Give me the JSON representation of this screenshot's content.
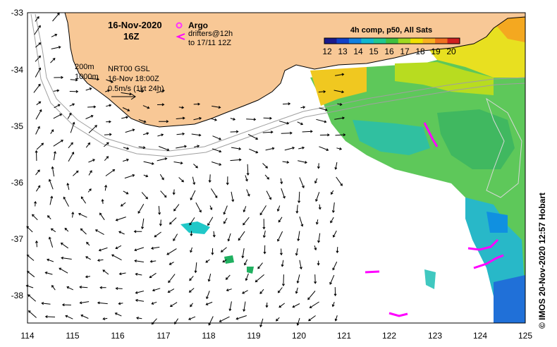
{
  "title": {
    "date": "16-Nov-2020",
    "hour": "16Z"
  },
  "legend": {
    "argo_label": "Argo",
    "drifters_line1": "drifters@12h",
    "drifters_line2": "to 17/11 12Z",
    "argo_color": "#ff33ff",
    "drifter_color": "#ff00ff"
  },
  "contours": {
    "label_200m": "200m",
    "label_1000m": "1000m"
  },
  "currents": {
    "product": "NRT00 GSL",
    "valid_time": "16-Nov 18:00Z",
    "scale_label": "0.5m/s (1kt 24h)"
  },
  "colorbar": {
    "title": "4h comp, p50, All Sats",
    "ticks": [
      "12",
      "13",
      "14",
      "15",
      "16",
      "17",
      "18",
      "19",
      "20"
    ],
    "colors": [
      "#1a1a8c",
      "#1040c8",
      "#1080e0",
      "#10b8d0",
      "#20c890",
      "#40c040",
      "#a0d820",
      "#f0e000",
      "#f8b020",
      "#f07020",
      "#d02020"
    ]
  },
  "axes": {
    "y_ticks": [
      "-33",
      "-34",
      "-35",
      "-36",
      "-37",
      "-38"
    ],
    "y_values": [
      -33,
      -34,
      -35,
      -36,
      -37,
      -38
    ],
    "x_ticks": [
      "114",
      "115",
      "116",
      "117",
      "118",
      "119",
      "120",
      "121",
      "122",
      "123",
      "124",
      "125"
    ],
    "x_values": [
      114,
      115,
      116,
      117,
      118,
      119,
      120,
      121,
      122,
      123,
      124,
      125
    ],
    "lon_range": [
      114,
      125
    ],
    "lat_range": [
      -38.5,
      -33
    ]
  },
  "credit": "© IMOS 20-Nov-2020 12:57 Hobart",
  "colors": {
    "land": "#f8c896",
    "frame": "#000000",
    "isobath": "#a0a0a0"
  }
}
